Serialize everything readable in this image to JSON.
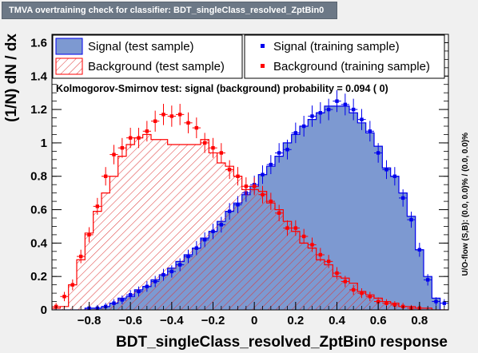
{
  "title": "TMVA overtraining check for classifier: BDT_singleClass_resolved_ZptBin0",
  "ks_text": "Kolmogorov-Smirnov test: signal (background) probability = 0.094 (    0)",
  "side_label": "U/O-flow (S,B): (0.0, 0.0)% / (0.0, 0.0)%",
  "colors": {
    "signal_fill": "#7d99d1",
    "signal_line": "#0000ee",
    "background_line": "#ff0000",
    "background_hatch": "#dd3333"
  },
  "chart_data": {
    "type": "histogram",
    "xlabel": "BDT_singleClass_resolved_ZptBin0 response",
    "ylabel": "(1/N) dN / dx",
    "xlim": [
      -0.98,
      0.94
    ],
    "ylim": [
      0,
      1.65
    ],
    "xticks": [
      -0.8,
      -0.6,
      -0.4,
      -0.2,
      0,
      0.2,
      0.4,
      0.6,
      0.8
    ],
    "xtick_labels": [
      "−0.8",
      "−0.6",
      "−0.4",
      "−0.2",
      "0",
      "0.2",
      "0.4",
      "0.6",
      "0.8"
    ],
    "yticks": [
      0,
      0.2,
      0.4,
      0.6,
      0.8,
      1,
      1.2,
      1.4,
      1.6
    ],
    "ytick_labels": [
      "0",
      "0.2",
      "0.4",
      "0.6",
      "0.8",
      "1",
      "1.2",
      "1.4",
      "1.6"
    ],
    "bin_edges_start": -0.98,
    "bin_width": 0.04,
    "legend": [
      {
        "label": "Signal (test sample)",
        "style": "filled-box"
      },
      {
        "label": "Signal (training sample)",
        "style": "blue-marker"
      },
      {
        "label": "Background (test sample)",
        "style": "hatched-box"
      },
      {
        "label": "Background (training sample)",
        "style": "red-marker"
      }
    ],
    "series": [
      {
        "name": "Signal (test sample)",
        "values": [
          0,
          0,
          0,
          0,
          0.01,
          0.01,
          0.02,
          0.04,
          0.07,
          0.08,
          0.12,
          0.14,
          0.18,
          0.21,
          0.25,
          0.29,
          0.33,
          0.37,
          0.43,
          0.47,
          0.53,
          0.59,
          0.64,
          0.69,
          0.74,
          0.81,
          0.86,
          0.92,
          1.0,
          1.05,
          1.1,
          1.14,
          1.18,
          1.22,
          1.22,
          1.22,
          1.18,
          1.12,
          1.06,
          0.98,
          0.85,
          0.8,
          0.7,
          0.56,
          0.36,
          0.2,
          0.07,
          0
        ]
      },
      {
        "name": "Signal (training sample)",
        "values": [
          0,
          0,
          0,
          0,
          0.01,
          0.01,
          0.02,
          0.04,
          0.06,
          0.09,
          0.11,
          0.14,
          0.17,
          0.21,
          0.23,
          0.27,
          0.32,
          0.37,
          0.42,
          0.47,
          0.51,
          0.59,
          0.63,
          0.7,
          0.75,
          0.81,
          0.87,
          0.94,
          0.96,
          1.06,
          1.1,
          1.16,
          1.18,
          1.2,
          1.25,
          1.23,
          1.2,
          1.14,
          1.07,
          0.94,
          0.84,
          0.8,
          0.67,
          0.54,
          0.36,
          0.18,
          0.05,
          0.04
        ]
      },
      {
        "name": "Background (test sample)",
        "values": [
          0.01,
          0.02,
          0.15,
          0.3,
          0.46,
          0.59,
          0.7,
          0.8,
          0.92,
          0.99,
          1.03,
          1.05,
          1.02,
          1.02,
          0.99,
          0.99,
          0.99,
          0.99,
          1.02,
          0.94,
          0.88,
          0.86,
          0.8,
          0.72,
          0.72,
          0.71,
          0.64,
          0.6,
          0.53,
          0.47,
          0.4,
          0.37,
          0.3,
          0.27,
          0.2,
          0.19,
          0.16,
          0.11,
          0.09,
          0.07,
          0.05,
          0.04,
          0.02,
          0.02,
          0.01,
          0.01,
          0,
          0
        ]
      },
      {
        "name": "Background (training sample)",
        "values": [
          0.02,
          0.08,
          0.15,
          0.32,
          0.45,
          0.62,
          0.8,
          0.93,
          0.97,
          1.03,
          1.03,
          1.07,
          1.13,
          1.17,
          1.16,
          1.17,
          1.12,
          1.09,
          1.0,
          0.97,
          0.94,
          0.84,
          0.8,
          0.74,
          0.74,
          0.69,
          0.65,
          0.58,
          0.49,
          0.49,
          0.44,
          0.39,
          0.33,
          0.29,
          0.22,
          0.17,
          0.12,
          0.1,
          0.08,
          0.05,
          0.04,
          0.03,
          0.02,
          0.01,
          0.01,
          0,
          0,
          0
        ]
      }
    ]
  }
}
